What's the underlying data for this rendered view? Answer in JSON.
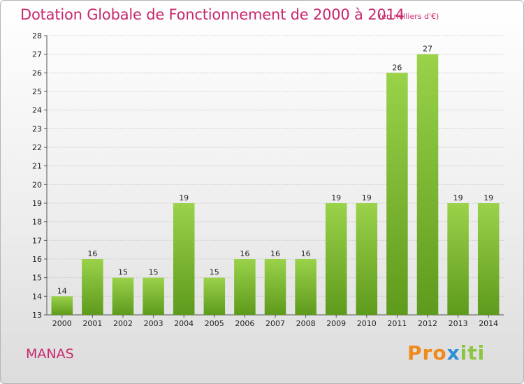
{
  "title": "Dotation Globale de Fonctionnement de 2000 à 2014",
  "unit": "(en milliers d'€)",
  "commune": "MANAS",
  "logo": {
    "part1": "Pro",
    "part2": "x",
    "part3": "iti"
  },
  "colors": {
    "bar": "#8cc63f",
    "bar_dark": "#5e9a1c",
    "title": "#c8286e",
    "grid": "#cccccc"
  },
  "chart_data": {
    "type": "bar",
    "categories": [
      "2000",
      "2001",
      "2002",
      "2003",
      "2004",
      "2005",
      "2006",
      "2007",
      "2008",
      "2009",
      "2010",
      "2011",
      "2012",
      "2013",
      "2014"
    ],
    "values": [
      14,
      16,
      15,
      15,
      19,
      15,
      16,
      16,
      16,
      19,
      19,
      26,
      27,
      19,
      19
    ],
    "ylim": [
      13,
      28
    ],
    "yticks": [
      13,
      14,
      15,
      16,
      17,
      18,
      19,
      20,
      21,
      22,
      23,
      24,
      25,
      26,
      27,
      28
    ],
    "grid": true,
    "xlabel": "",
    "ylabel": ""
  }
}
